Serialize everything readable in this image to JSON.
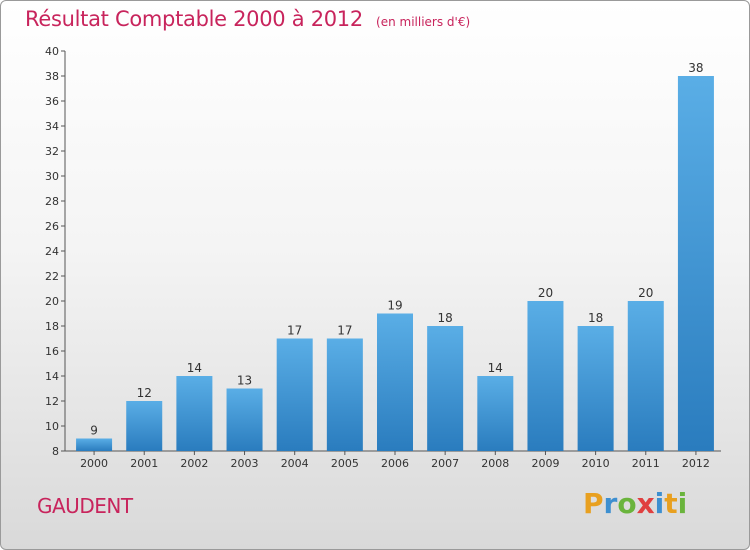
{
  "chart_data": {
    "type": "bar",
    "title": "Résultat Comptable 2000 à 2012",
    "subtitle": "(en milliers d'€)",
    "categories": [
      "2000",
      "2001",
      "2002",
      "2003",
      "2004",
      "2005",
      "2006",
      "2007",
      "2008",
      "2009",
      "2010",
      "2011",
      "2012"
    ],
    "values": [
      9,
      12,
      14,
      13,
      17,
      17,
      19,
      18,
      14,
      20,
      18,
      20,
      38
    ],
    "ylim": [
      8,
      40
    ],
    "ytick_step": 2,
    "grid": false,
    "bar_color_top": "#5aaee6",
    "bar_color_bottom": "#2a7cbe"
  },
  "footer": {
    "commune": "GAUDENT",
    "brand_letters": [
      {
        "char": "P",
        "color": "#e8a020"
      },
      {
        "char": "r",
        "color": "#3d8fd0"
      },
      {
        "char": "o",
        "color": "#6ab43c"
      },
      {
        "char": "x",
        "color": "#e04040"
      },
      {
        "char": "i",
        "color": "#3d8fd0"
      },
      {
        "char": "t",
        "color": "#e8a020"
      },
      {
        "char": "i",
        "color": "#6ab43c"
      }
    ]
  }
}
